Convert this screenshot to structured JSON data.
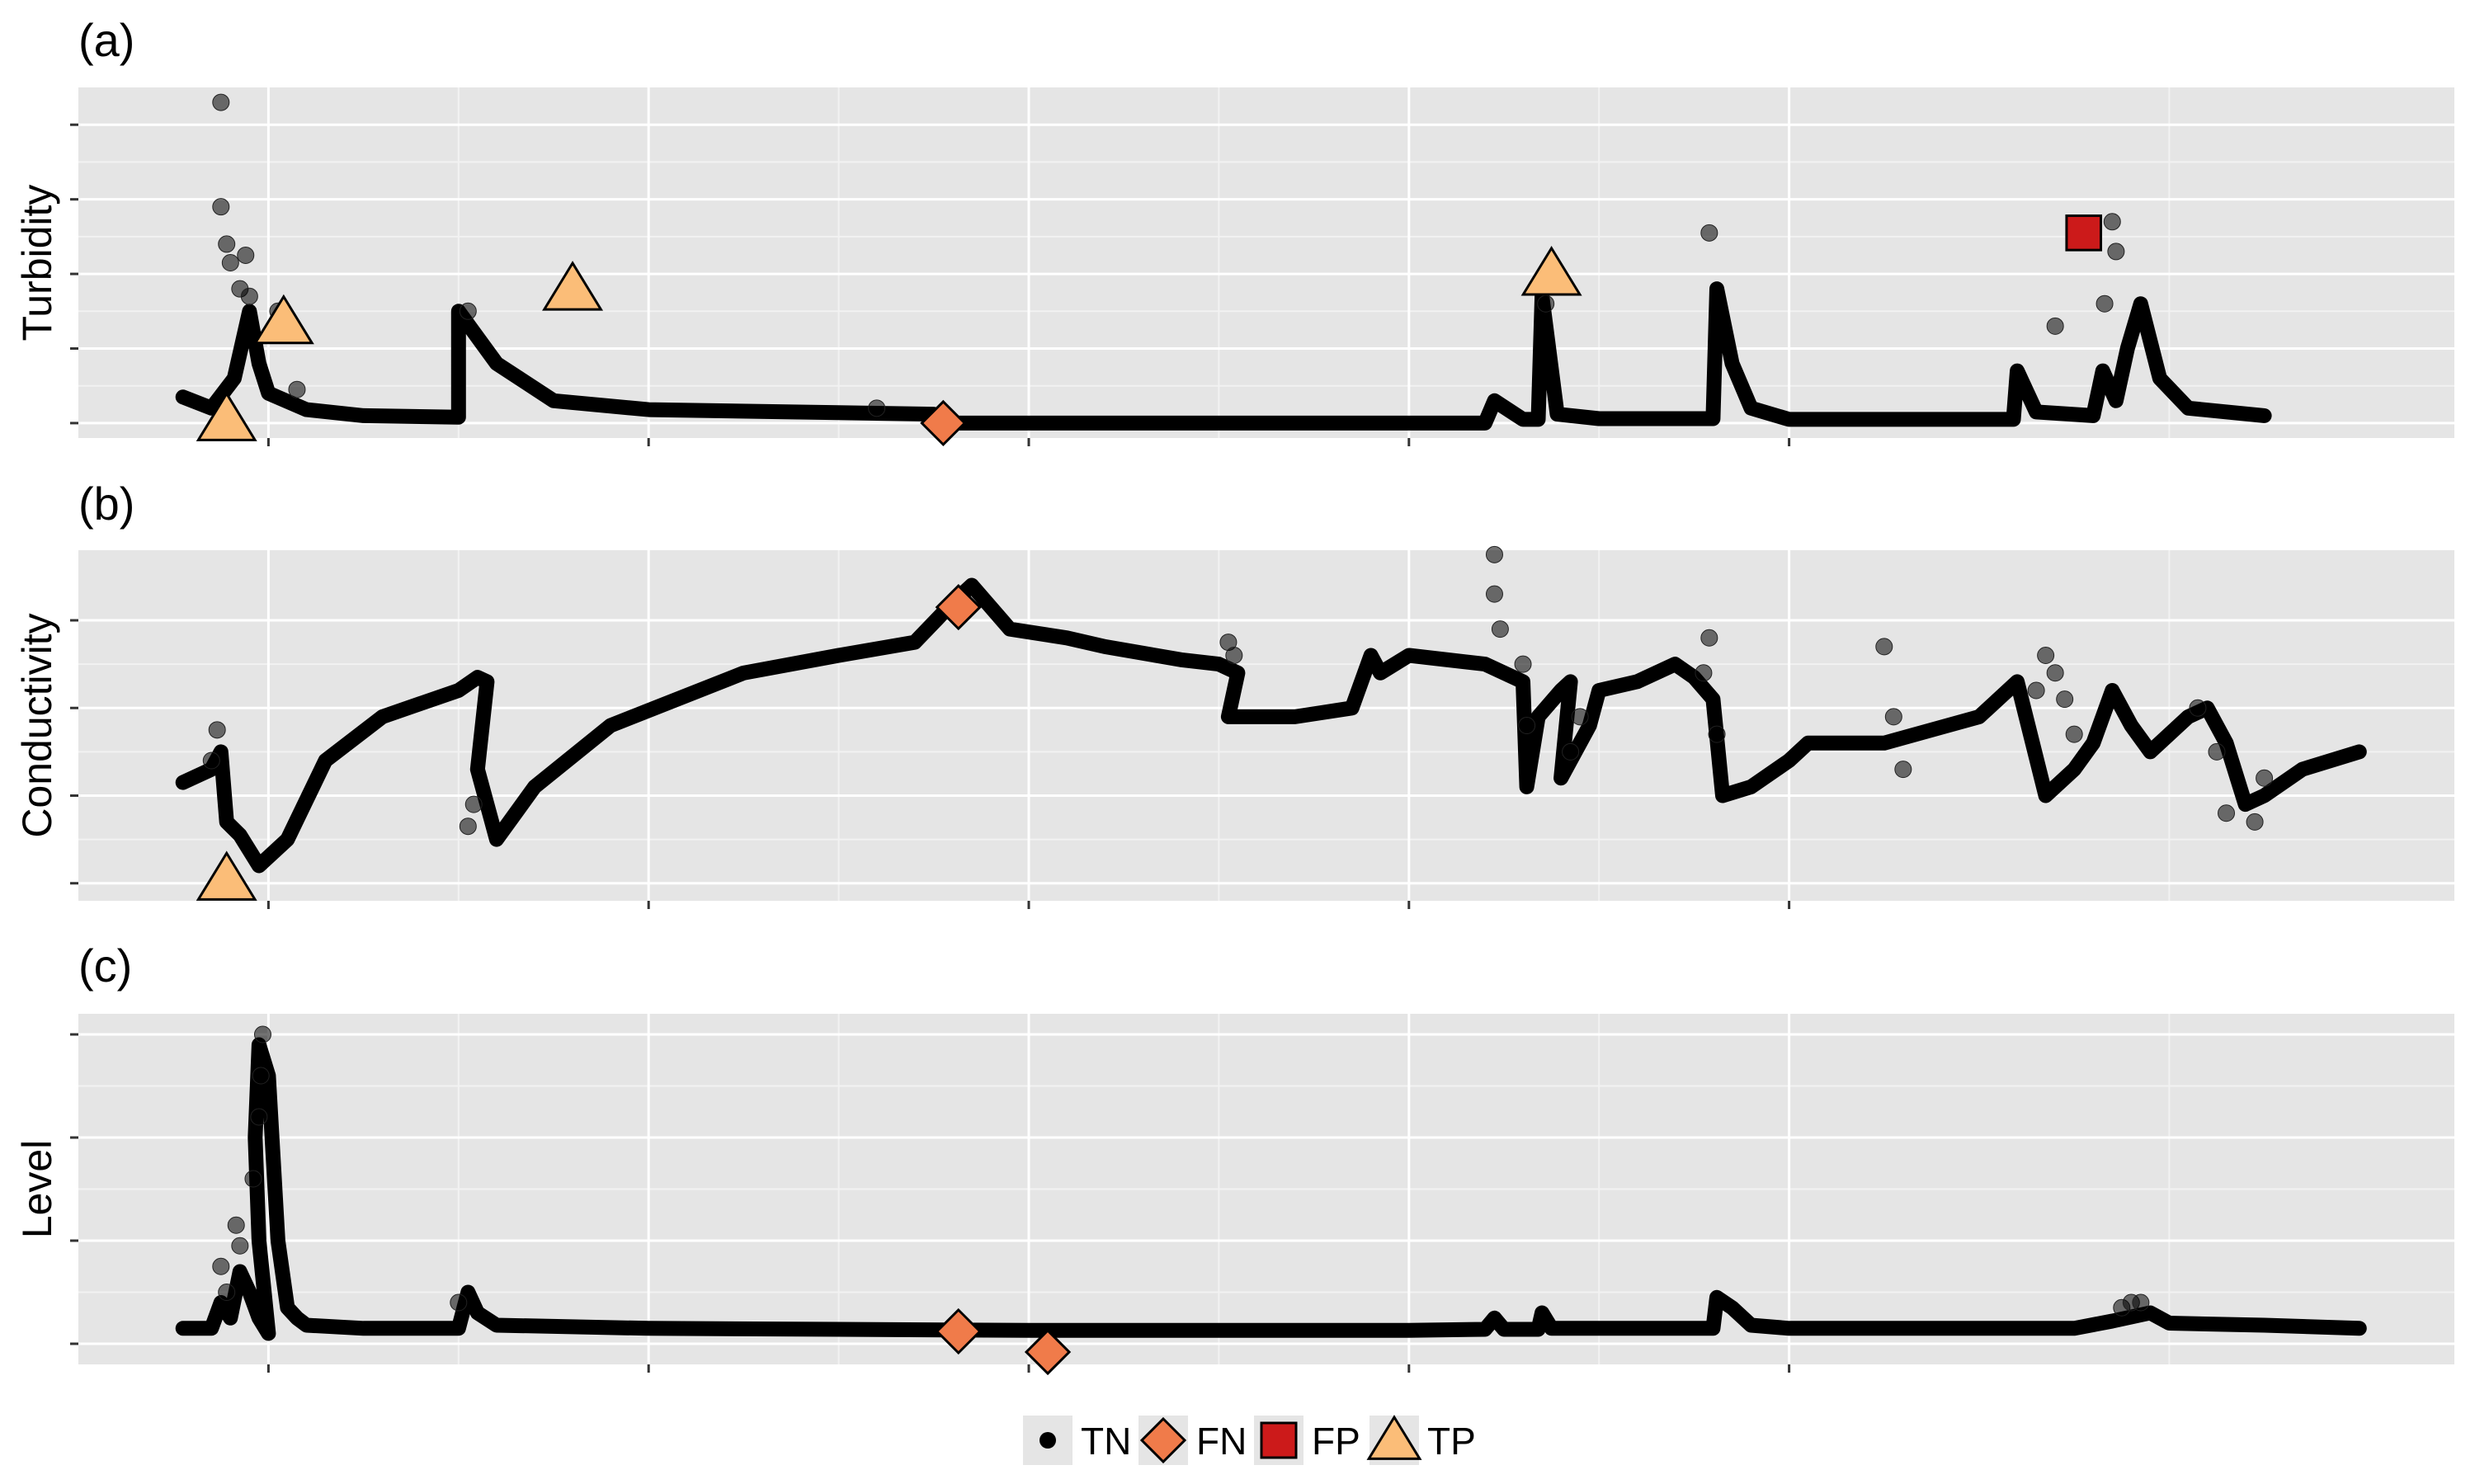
{
  "chart_data": [
    {
      "type": "scatter",
      "panel_label": "(a)",
      "ylabel": "Turbidity",
      "grid": true,
      "ylim": [
        -0.2,
        4.5
      ],
      "yticks": [
        0,
        1,
        2,
        3,
        4
      ],
      "xlim": [
        -1.0,
        10.0
      ],
      "xticks": [
        0,
        2,
        4,
        6,
        8
      ],
      "tick_labels_shown": false,
      "series": [
        {
          "name": "TN",
          "baseline": [
            [
              -0.45,
              0.35
            ],
            [
              -0.3,
              0.2
            ],
            [
              -0.18,
              0.6
            ],
            [
              -0.1,
              1.5
            ],
            [
              -0.05,
              0.8
            ],
            [
              0,
              0.4
            ],
            [
              0.2,
              0.18
            ],
            [
              0.5,
              0.1
            ],
            [
              1.0,
              0.08
            ],
            [
              1.0,
              1.5
            ],
            [
              1.2,
              0.8
            ],
            [
              1.5,
              0.3
            ],
            [
              2.0,
              0.18
            ],
            [
              3.0,
              0.14
            ],
            [
              3.5,
              0.12
            ],
            [
              3.5,
              0.0
            ],
            [
              4.0,
              0.0
            ],
            [
              5.0,
              0.0
            ],
            [
              6.0,
              0.0
            ],
            [
              6.4,
              0.0
            ],
            [
              6.45,
              0.3
            ],
            [
              6.6,
              0.05
            ],
            [
              6.68,
              0.05
            ],
            [
              6.7,
              1.7
            ],
            [
              6.78,
              0.12
            ],
            [
              7.0,
              0.06
            ],
            [
              7.6,
              0.06
            ],
            [
              7.62,
              1.8
            ],
            [
              7.7,
              0.8
            ],
            [
              7.8,
              0.2
            ],
            [
              8.0,
              0.05
            ],
            [
              9.0,
              0.05
            ],
            [
              9.18,
              0.05
            ],
            [
              9.2,
              0.7
            ],
            [
              9.3,
              0.15
            ],
            [
              9.6,
              0.1
            ],
            [
              9.65,
              0.7
            ],
            [
              9.72,
              0.3
            ],
            [
              9.78,
              1.0
            ],
            [
              9.85,
              1.6
            ],
            [
              9.95,
              0.6
            ],
            [
              10.1,
              0.2
            ],
            [
              10.5,
              0.1
            ]
          ],
          "scatter": [
            [
              -0.25,
              4.3
            ],
            [
              -0.25,
              2.9
            ],
            [
              -0.22,
              2.4
            ],
            [
              -0.2,
              2.15
            ],
            [
              -0.15,
              1.8
            ],
            [
              -0.1,
              1.7
            ],
            [
              0.05,
              1.5
            ],
            [
              0.15,
              0.45
            ],
            [
              -0.12,
              2.25
            ],
            [
              1.05,
              1.5
            ],
            [
              6.72,
              1.6
            ],
            [
              7.58,
              2.55
            ],
            [
              9.4,
              1.3
            ],
            [
              9.7,
              2.7
            ],
            [
              9.72,
              2.3
            ],
            [
              9.66,
              1.6
            ],
            [
              3.2,
              0.2
            ]
          ]
        },
        {
          "name": "FN",
          "points": [
            [
              3.55,
              0.0
            ]
          ]
        },
        {
          "name": "FP",
          "points": [
            [
              9.55,
              2.55
            ]
          ]
        },
        {
          "name": "TP",
          "points": [
            [
              -0.22,
              0.05
            ],
            [
              0.08,
              1.35
            ],
            [
              1.6,
              1.8
            ],
            [
              6.75,
              2.0
            ]
          ]
        }
      ]
    },
    {
      "type": "scatter",
      "panel_label": "(b)",
      "ylabel": "Conductivity",
      "grid": true,
      "ylim": [
        -0.2,
        3.8
      ],
      "yticks": [
        0,
        1,
        2,
        3
      ],
      "xlim": [
        -1.0,
        10.0
      ],
      "xticks": [
        0,
        2,
        4,
        6,
        8
      ],
      "tick_labels_shown": false,
      "series": [
        {
          "name": "TN",
          "baseline": [
            [
              -0.45,
              1.15
            ],
            [
              -0.3,
              1.3
            ],
            [
              -0.25,
              1.5
            ],
            [
              -0.22,
              0.7
            ],
            [
              -0.15,
              0.55
            ],
            [
              -0.05,
              0.2
            ],
            [
              0.1,
              0.5
            ],
            [
              0.3,
              1.4
            ],
            [
              0.6,
              1.9
            ],
            [
              0.8,
              2.05
            ],
            [
              1.0,
              2.2
            ],
            [
              1.1,
              2.35
            ],
            [
              1.15,
              2.3
            ],
            [
              1.1,
              1.3
            ],
            [
              1.2,
              0.5
            ],
            [
              1.4,
              1.1
            ],
            [
              1.8,
              1.8
            ],
            [
              2.5,
              2.4
            ],
            [
              3.0,
              2.6
            ],
            [
              3.4,
              2.75
            ],
            [
              3.6,
              3.2
            ],
            [
              3.7,
              3.4
            ],
            [
              3.9,
              2.9
            ],
            [
              4.2,
              2.8
            ],
            [
              4.4,
              2.7
            ],
            [
              4.8,
              2.55
            ],
            [
              5.0,
              2.5
            ],
            [
              5.1,
              2.4
            ],
            [
              5.05,
              1.9
            ],
            [
              5.4,
              1.9
            ],
            [
              5.55,
              1.95
            ],
            [
              5.7,
              2.0
            ],
            [
              5.75,
              2.3
            ],
            [
              5.8,
              2.6
            ],
            [
              5.85,
              2.4
            ],
            [
              6.0,
              2.6
            ],
            [
              6.4,
              2.5
            ],
            [
              6.6,
              2.3
            ],
            [
              6.62,
              1.1
            ],
            [
              6.68,
              1.9
            ],
            [
              6.8,
              2.2
            ],
            [
              6.85,
              2.3
            ],
            [
              6.8,
              1.2
            ],
            [
              6.95,
              1.8
            ],
            [
              7.0,
              2.2
            ],
            [
              7.2,
              2.3
            ],
            [
              7.4,
              2.5
            ],
            [
              7.5,
              2.35
            ],
            [
              7.6,
              2.1
            ],
            [
              7.65,
              1.0
            ],
            [
              7.8,
              1.1
            ],
            [
              8.0,
              1.4
            ],
            [
              8.1,
              1.6
            ],
            [
              8.5,
              1.6
            ],
            [
              9.0,
              1.9
            ],
            [
              9.2,
              2.3
            ],
            [
              9.35,
              1.0
            ],
            [
              9.5,
              1.3
            ],
            [
              9.6,
              1.6
            ],
            [
              9.7,
              2.2
            ],
            [
              9.8,
              1.8
            ],
            [
              9.9,
              1.5
            ],
            [
              10.0,
              1.7
            ],
            [
              10.1,
              1.9
            ],
            [
              10.2,
              2.0
            ],
            [
              10.3,
              1.6
            ],
            [
              10.4,
              0.9
            ],
            [
              10.5,
              1.0
            ],
            [
              10.7,
              1.3
            ],
            [
              11.0,
              1.5
            ]
          ],
          "scatter": [
            [
              -0.27,
              1.75
            ],
            [
              -0.3,
              1.4
            ],
            [
              1.08,
              0.9
            ],
            [
              1.05,
              0.65
            ],
            [
              5.05,
              2.75
            ],
            [
              5.08,
              2.6
            ],
            [
              6.45,
              3.75
            ],
            [
              6.45,
              3.3
            ],
            [
              6.48,
              2.9
            ],
            [
              6.6,
              2.5
            ],
            [
              6.62,
              1.8
            ],
            [
              6.85,
              1.5
            ],
            [
              6.9,
              1.9
            ],
            [
              7.58,
              2.8
            ],
            [
              7.55,
              2.4
            ],
            [
              7.62,
              1.7
            ],
            [
              8.5,
              2.7
            ],
            [
              8.55,
              1.9
            ],
            [
              8.6,
              1.3
            ],
            [
              9.3,
              2.2
            ],
            [
              9.35,
              2.6
            ],
            [
              9.4,
              2.4
            ],
            [
              9.45,
              2.1
            ],
            [
              9.5,
              1.7
            ],
            [
              10.15,
              2.0
            ],
            [
              10.25,
              1.5
            ],
            [
              10.3,
              0.8
            ],
            [
              10.45,
              0.7
            ],
            [
              10.5,
              1.2
            ]
          ]
        },
        {
          "name": "FN",
          "points": [
            [
              3.63,
              3.15
            ]
          ]
        },
        {
          "name": "TP",
          "points": [
            [
              -0.22,
              0.05
            ]
          ]
        }
      ]
    },
    {
      "type": "scatter",
      "panel_label": "(c)",
      "ylabel": "Level",
      "grid": true,
      "ylim": [
        -0.2,
        3.2
      ],
      "yticks": [
        0,
        1,
        2,
        3
      ],
      "xlim": [
        -1.0,
        10.0
      ],
      "xticks": [
        0,
        2,
        4,
        6,
        8
      ],
      "tick_labels_shown": false,
      "series": [
        {
          "name": "TN",
          "baseline": [
            [
              -0.45,
              0.15
            ],
            [
              -0.3,
              0.15
            ],
            [
              -0.25,
              0.4
            ],
            [
              -0.2,
              0.25
            ],
            [
              -0.15,
              0.7
            ],
            [
              -0.1,
              0.5
            ],
            [
              -0.05,
              0.25
            ],
            [
              0.0,
              0.1
            ],
            [
              -0.05,
              1.0
            ],
            [
              -0.07,
              2.0
            ],
            [
              -0.05,
              2.9
            ],
            [
              0.0,
              2.6
            ],
            [
              0.05,
              1.0
            ],
            [
              0.1,
              0.35
            ],
            [
              0.15,
              0.25
            ],
            [
              0.2,
              0.18
            ],
            [
              0.5,
              0.15
            ],
            [
              1.0,
              0.15
            ],
            [
              1.05,
              0.5
            ],
            [
              1.1,
              0.3
            ],
            [
              1.2,
              0.18
            ],
            [
              2.0,
              0.15
            ],
            [
              4.0,
              0.13
            ],
            [
              6.0,
              0.13
            ],
            [
              6.4,
              0.14
            ],
            [
              6.45,
              0.25
            ],
            [
              6.5,
              0.14
            ],
            [
              6.68,
              0.14
            ],
            [
              6.7,
              0.3
            ],
            [
              6.75,
              0.15
            ],
            [
              7.0,
              0.15
            ],
            [
              7.6,
              0.15
            ],
            [
              7.62,
              0.45
            ],
            [
              7.7,
              0.35
            ],
            [
              7.8,
              0.18
            ],
            [
              8.0,
              0.15
            ],
            [
              9.0,
              0.15
            ],
            [
              9.5,
              0.15
            ],
            [
              9.7,
              0.22
            ],
            [
              9.9,
              0.3
            ],
            [
              10.0,
              0.2
            ],
            [
              10.5,
              0.18
            ],
            [
              11.0,
              0.15
            ]
          ],
          "scatter": [
            [
              -0.25,
              0.75
            ],
            [
              -0.22,
              0.5
            ],
            [
              -0.17,
              1.15
            ],
            [
              -0.15,
              0.95
            ],
            [
              -0.08,
              1.6
            ],
            [
              -0.05,
              2.2
            ],
            [
              -0.04,
              2.6
            ],
            [
              -0.03,
              3.0
            ],
            [
              1.0,
              0.4
            ],
            [
              9.75,
              0.35
            ],
            [
              9.8,
              0.4
            ],
            [
              9.85,
              0.4
            ]
          ]
        },
        {
          "name": "FN",
          "points": [
            [
              3.63,
              0.12
            ],
            [
              4.1,
              -0.08
            ]
          ]
        }
      ]
    }
  ],
  "legend": {
    "position": "bottom",
    "items": [
      {
        "name": "TN",
        "shape": "circle",
        "color": "#000000"
      },
      {
        "name": "FN",
        "shape": "diamond",
        "color": "#f07b4a"
      },
      {
        "name": "FP",
        "shape": "square",
        "color": "#cc1a1a"
      },
      {
        "name": "TP",
        "shape": "triangle",
        "color": "#fbbd78"
      }
    ]
  },
  "colors": {
    "panel_background": "#e5e5e5",
    "grid_major": "#ffffff",
    "grid_minor": "#f2f2f2",
    "TN_point": "#000000",
    "FN": "#f07b4a",
    "FP": "#cc1a1a",
    "TP": "#fbbd78"
  }
}
